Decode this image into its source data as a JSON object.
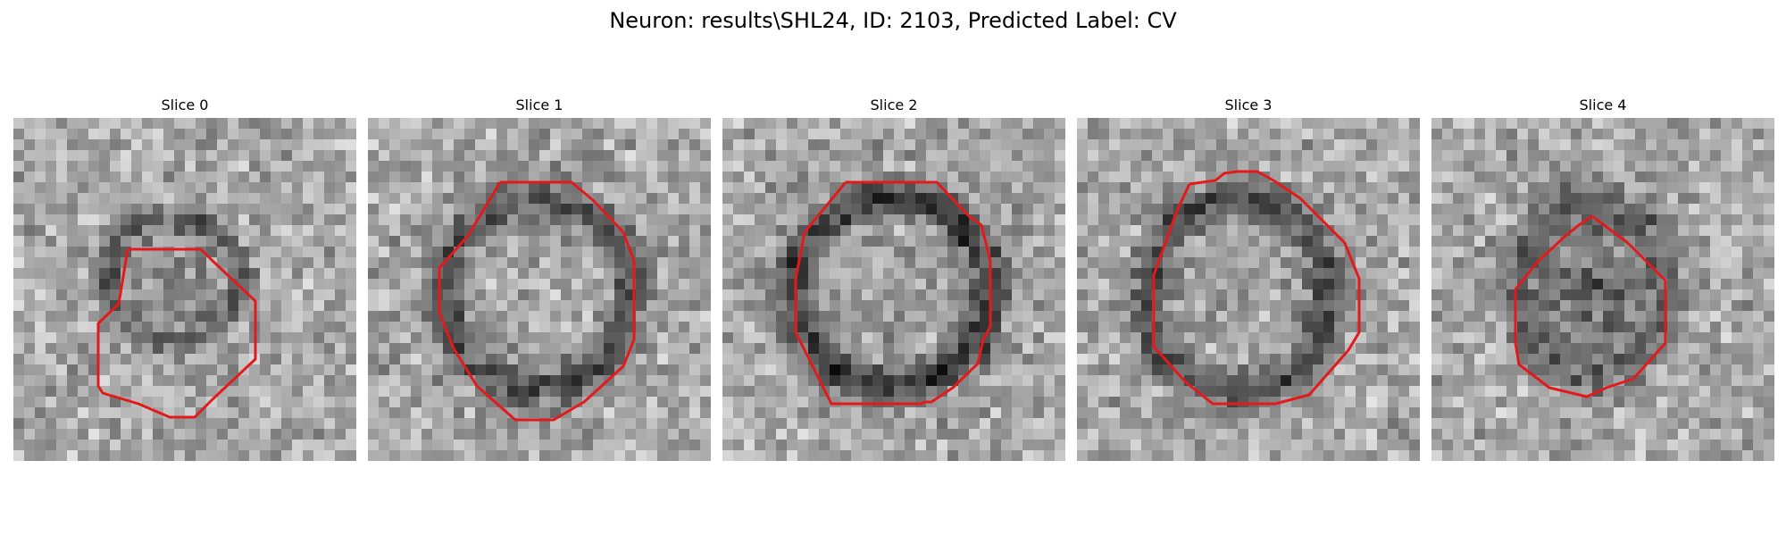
{
  "figure": {
    "title": "Neuron: results\\SHL24, ID: 2103, Predicted Label: CV"
  },
  "slices": [
    {
      "label": "Slice 0",
      "ring_darkness": 0.55,
      "fill_darkness": 0.35
    },
    {
      "label": "Slice 1",
      "ring_darkness": 0.7,
      "fill_darkness": 0.05
    },
    {
      "label": "Slice 2",
      "ring_darkness": 0.85,
      "fill_darkness": 0.1
    },
    {
      "label": "Slice 3",
      "ring_darkness": 0.7,
      "fill_darkness": 0.1
    },
    {
      "label": "Slice 4",
      "ring_darkness": 0.55,
      "fill_darkness": 0.75
    }
  ],
  "colors": {
    "outline": "#e31a1c",
    "background": "#ffffff"
  }
}
